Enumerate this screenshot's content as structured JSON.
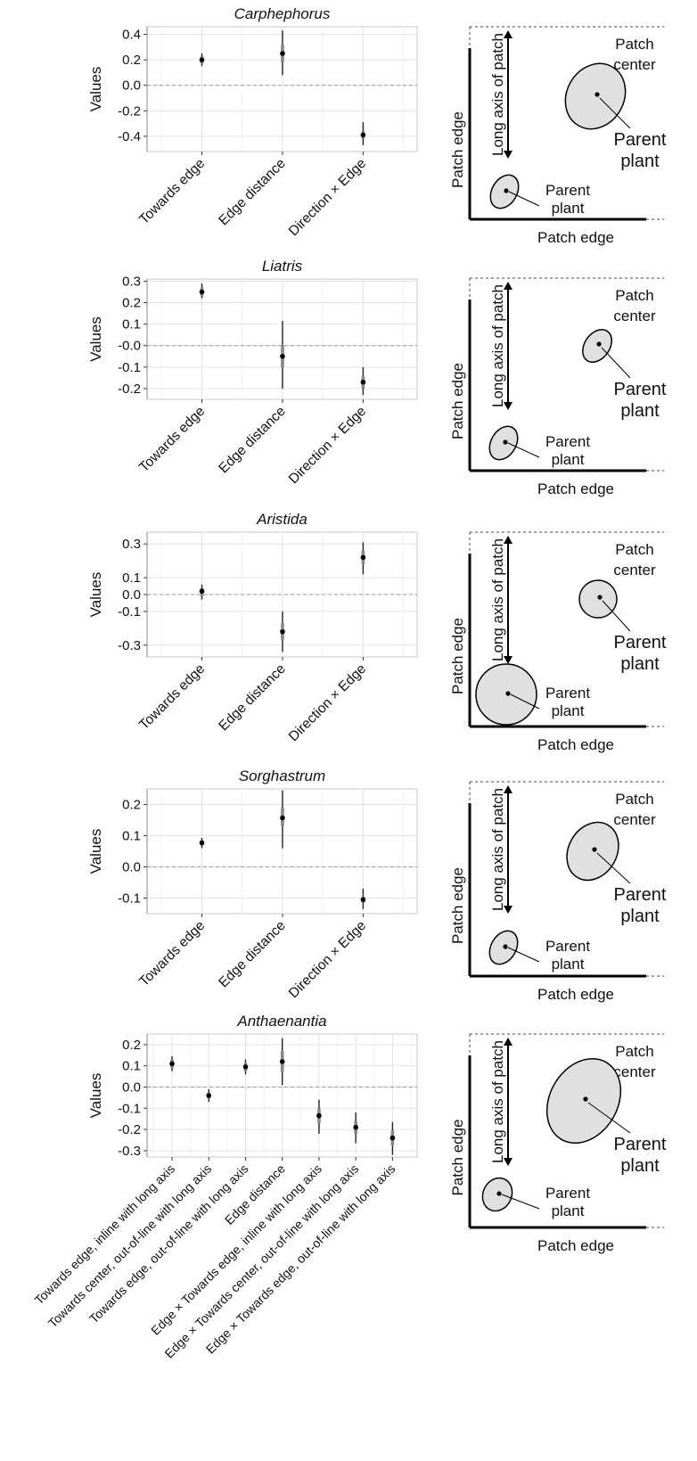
{
  "chart_data": [
    {
      "type": "scatter",
      "title": "Carphephorus",
      "ylabel": "Values",
      "categories": [
        "Towards edge",
        "Edge distance",
        "Direction × Edge"
      ],
      "yticks": [
        "0.4",
        "0.2",
        "0.0",
        "-0.2",
        "-0.4"
      ],
      "ylim": [
        -0.52,
        0.46
      ],
      "series": [
        {
          "values": [
            0.2,
            0.25,
            -0.39
          ],
          "inner_low": [
            0.17,
            0.18,
            -0.42
          ],
          "inner_high": [
            0.23,
            0.32,
            -0.36
          ],
          "outer_low": [
            0.15,
            0.08,
            -0.47
          ],
          "outer_high": [
            0.25,
            0.43,
            -0.29
          ]
        }
      ],
      "diagram": {
        "left_label": "Patch edge",
        "bottom_label": "Patch edge",
        "axis_label": "Long axis of patch",
        "center_label": [
          "Patch",
          "center"
        ],
        "parent_label_center": [
          "Parent",
          "plant"
        ],
        "parent_label_edge": [
          "Parent",
          "plant"
        ]
      }
    },
    {
      "type": "scatter",
      "title": "Liatris",
      "ylabel": "Values",
      "categories": [
        "Towards edge",
        "Edge distance",
        "Direction × Edge"
      ],
      "yticks": [
        "0.3",
        "0.2",
        "0.1",
        "-0.0",
        "-0.1",
        "-0.2"
      ],
      "ylim": [
        -0.25,
        0.31
      ],
      "series": [
        {
          "values": [
            0.25,
            -0.05,
            -0.17
          ],
          "inner_low": [
            0.23,
            -0.1,
            -0.2
          ],
          "inner_high": [
            0.27,
            0.0,
            -0.14
          ],
          "outer_low": [
            0.22,
            -0.2,
            -0.23
          ],
          "outer_high": [
            0.29,
            0.115,
            -0.1
          ]
        }
      ],
      "diagram": {
        "left_label": "Patch edge",
        "bottom_label": "Patch edge",
        "axis_label": "Long axis of patch",
        "center_label": [
          "Patch",
          "center"
        ],
        "parent_label_center": [
          "Parent",
          "plant"
        ],
        "parent_label_edge": [
          "Parent",
          "plant"
        ]
      }
    },
    {
      "type": "scatter",
      "title": "Aristida",
      "ylabel": "Values",
      "categories": [
        "Towards edge",
        "Edge distance",
        "Direction × Edge"
      ],
      "yticks": [
        "0.3",
        "0.1",
        "0.0",
        "-0.1",
        "-0.3"
      ],
      "ylim": [
        -0.37,
        0.37
      ],
      "series": [
        {
          "values": [
            0.02,
            -0.22,
            0.22
          ],
          "inner_low": [
            -0.01,
            -0.27,
            0.18
          ],
          "inner_high": [
            0.04,
            -0.17,
            0.26
          ],
          "outer_low": [
            -0.03,
            -0.34,
            0.12
          ],
          "outer_high": [
            0.06,
            -0.1,
            0.31
          ]
        }
      ],
      "diagram": {
        "left_label": "Patch edge",
        "bottom_label": "Patch edge",
        "axis_label": "Long axis of patch",
        "center_label": [
          "Patch",
          "center"
        ],
        "parent_label_center": [
          "Parent",
          "plant"
        ],
        "parent_label_edge": [
          "Parent",
          "plant"
        ]
      }
    },
    {
      "type": "scatter",
      "title": "Sorghastrum",
      "ylabel": "Values",
      "categories": [
        "Towards edge",
        "Edge distance",
        "Direction × Edge"
      ],
      "yticks": [
        "0.2",
        "0.1",
        "0.0",
        "-0.1"
      ],
      "ylim": [
        -0.15,
        0.25
      ],
      "series": [
        {
          "values": [
            0.077,
            0.157,
            -0.105
          ],
          "inner_low": [
            0.068,
            0.13,
            -0.115
          ],
          "inner_high": [
            0.086,
            0.19,
            -0.095
          ],
          "outer_low": [
            0.06,
            0.06,
            -0.135
          ],
          "outer_high": [
            0.093,
            0.245,
            -0.07
          ]
        }
      ],
      "diagram": {
        "left_label": "Patch edge",
        "bottom_label": "Patch edge",
        "axis_label": "Long axis of patch",
        "center_label": [
          "Patch",
          "center"
        ],
        "parent_label_center": [
          "Parent",
          "plant"
        ],
        "parent_label_edge": [
          "Parent",
          "plant"
        ]
      }
    },
    {
      "type": "scatter",
      "title": "Anthaenantia",
      "ylabel": "Values",
      "categories": [
        "Towards edge, inline with long axis",
        "Towards center, out-of-line with long axis",
        "Towards edge, out-of-line with long axis",
        "Edge distance",
        "Edge × Towards edge, inline with long axis",
        "Edge × Towards center, out-of-line with long axis",
        "Edge × Towards edge, out-of-line with long axis"
      ],
      "yticks": [
        "0.2",
        "0.1",
        "0.0",
        "-0.1",
        "-0.2",
        "-0.3"
      ],
      "ylim": [
        -0.33,
        0.25
      ],
      "series": [
        {
          "values": [
            0.11,
            -0.04,
            0.095,
            0.12,
            -0.135,
            -0.19,
            -0.24
          ],
          "inner_low": [
            0.09,
            -0.055,
            0.075,
            0.07,
            -0.17,
            -0.22,
            -0.275
          ],
          "inner_high": [
            0.13,
            -0.025,
            0.115,
            0.17,
            -0.1,
            -0.16,
            -0.205
          ],
          "outer_low": [
            0.075,
            -0.07,
            0.06,
            0.01,
            -0.22,
            -0.265,
            -0.32
          ],
          "outer_high": [
            0.145,
            -0.01,
            0.13,
            0.23,
            -0.06,
            -0.12,
            -0.165
          ]
        }
      ],
      "diagram": {
        "left_label": "Patch edge",
        "bottom_label": "Patch edge",
        "axis_label": "Long axis of patch",
        "center_label": [
          "Patch",
          "center"
        ],
        "parent_label_center": [
          "Parent",
          "plant"
        ],
        "parent_label_edge": [
          "Parent",
          "plant"
        ]
      }
    }
  ]
}
